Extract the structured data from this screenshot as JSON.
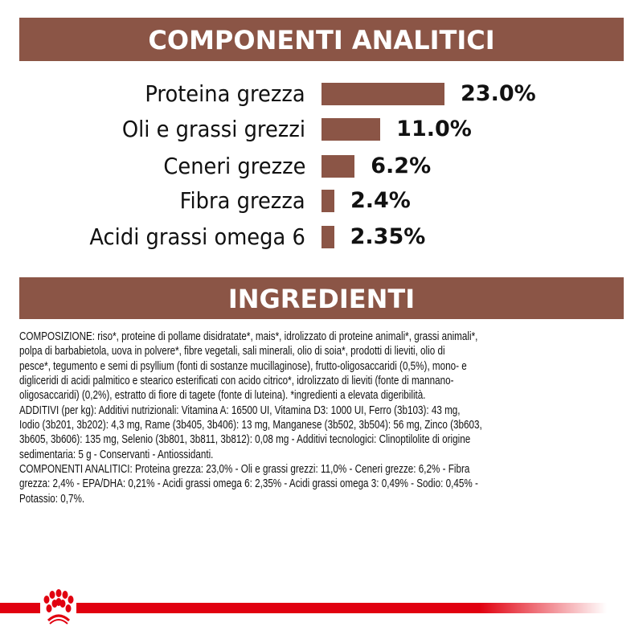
{
  "header_analytic": "COMPONENTI ANALITICI",
  "header_ingredients": "INGREDIENTI",
  "bar_color": "#8b5546",
  "brand_color": "#e1000f",
  "analytics": [
    {
      "label": "Proteina grezza",
      "value_text": "23.0%",
      "value": 23.0
    },
    {
      "label": "Oli e grassi grezzi",
      "value_text": "11.0%",
      "value": 11.0
    },
    {
      "label": "Ceneri grezze",
      "value_text": "6.2%",
      "value": 6.2
    },
    {
      "label": "Fibra grezza",
      "value_text": "2.4%",
      "value": 2.4
    },
    {
      "label": "Acidi grassi omega 6",
      "value_text": "2.35%",
      "value": 2.35
    }
  ],
  "ingredients_lines": [
    "COMPOSIZIONE: riso*, proteine di pollame disidratate*, mais*, idrolizzato di proteine animali*, grassi animali*,",
    "polpa di barbabietola, uova in polvere*, fibre vegetali, sali minerali, olio di soia*, prodotti di lieviti, olio di",
    "pesce*, tegumento e semi di psyllium (fonti di sostanze mucillaginose), frutto-oligosaccaridi (0,5%), mono- e",
    "digliceridi di acidi palmitico e stearico esterificati con acido citrico*, idrolizzato di lieviti (fonte di mannano-",
    "oligosaccaridi) (0,2%), estratto di fiore di tagete (fonte di luteina). *ingredienti a elevata digeribilità.",
    "ADDITIVI (per kg): Additivi nutrizionali: Vitamina A: 16500 UI, Vitamina D3: 1000 UI, Ferro (3b103): 43 mg,",
    "Iodio (3b201, 3b202): 4,3 mg, Rame (3b405, 3b406): 13 mg, Manganese (3b502, 3b504): 56 mg, Zinco (3b603,",
    "3b605, 3b606): 135 mg, Selenio (3b801, 3b811, 3b812): 0,08 mg - Additivi tecnologici: Clinoptilolite di origine",
    "sedimentaria: 5 g - Conservanti - Antiossidanti.",
    "COMPONENTI ANALITICI: Proteina grezza: 23,0% - Oli e grassi grezzi: 11,0% - Ceneri grezze: 6,2% - Fibra",
    "grezza: 2,4% - EPA/DHA: 0,21% - Acidi grassi omega 6: 2,35% - Acidi grassi omega 3: 0,49% - Sodio: 0,45% -",
    "Potassio: 0,7%."
  ]
}
